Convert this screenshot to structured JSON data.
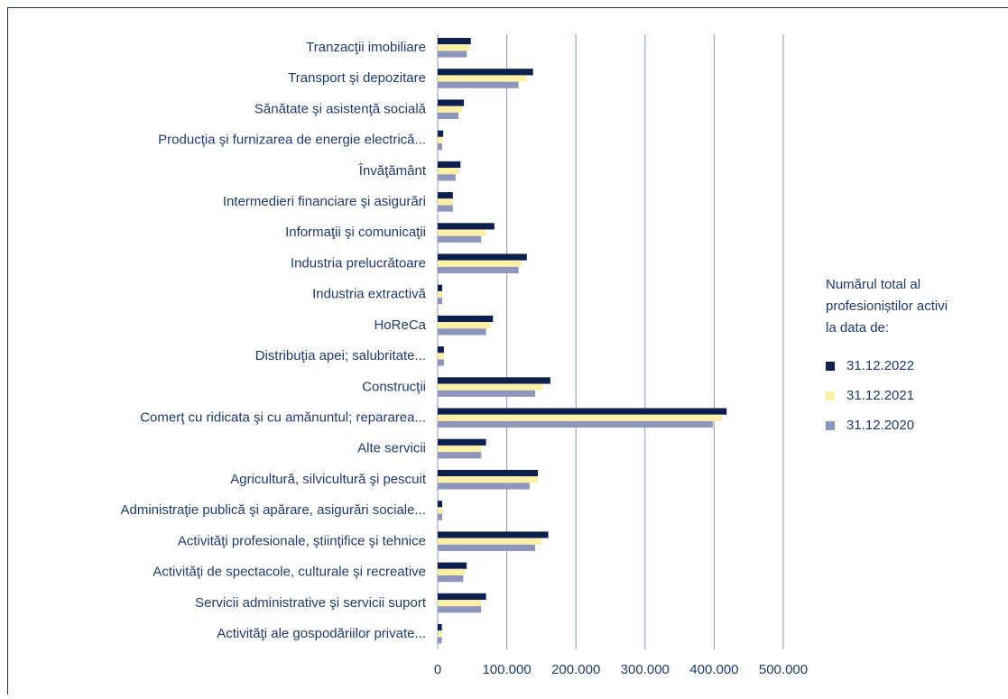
{
  "chart_data": {
    "type": "barh",
    "categories": [
      "Tranzacţii imobiliare",
      "Transport şi depozitare",
      "Sănătate şi asistenţă socială",
      "Producţia şi furnizarea de energie electrică...",
      "Învăţământ",
      "Intermedieri financiare şi asigurări",
      "Informaţii şi comunicaţii",
      "Industria prelucrătoare",
      "Industria extractivă",
      "HoReCa",
      "Distribuţia apei; salubritate...",
      "Construcţii",
      "Comerţ cu ridicata şi cu amănuntul; repararea...",
      "Alte servicii",
      "Agricultură, silvicultură şi pescuit",
      "Administraţie publică şi apărare, asigurări sociale...",
      "Activităţi profesionale, ştiinţifice şi tehnice",
      "Activităţi de spectacole, culturale şi recreative",
      "Servicii administrative şi servicii suport",
      "Activităţi ale gospodăriilor private..."
    ],
    "series": [
      {
        "name": "31.12.2022",
        "color": "#0d1f4d",
        "values": [
          48000,
          138000,
          38000,
          8000,
          33000,
          22000,
          82000,
          129000,
          6500,
          80000,
          9000,
          163000,
          418000,
          70000,
          145000,
          6500,
          160000,
          42000,
          70000,
          6000
        ]
      },
      {
        "name": "31.12.2021",
        "color": "#fcefa6",
        "values": [
          46000,
          129000,
          35000,
          7000,
          30000,
          22000,
          70000,
          121000,
          6500,
          76000,
          9000,
          152000,
          411000,
          63000,
          145000,
          6500,
          151000,
          39000,
          63000,
          6000
        ]
      },
      {
        "name": "31.12.2020",
        "color": "#8f96bb",
        "values": [
          42000,
          117000,
          30000,
          6500,
          26000,
          22000,
          63000,
          117000,
          6500,
          70000,
          9000,
          141000,
          398000,
          63000,
          133000,
          6500,
          141000,
          37000,
          63000,
          6000
        ]
      }
    ],
    "legend_title": [
      "Numărul total al",
      "profesioniștilor activi",
      "la data de:"
    ],
    "xlim": [
      0,
      500000
    ],
    "xticks": [
      0,
      {
        "value": 100000,
        "label": "100.000"
      },
      {
        "value": 200000,
        "label": "200.000"
      },
      {
        "value": 300000,
        "label": "300.000"
      },
      {
        "value": 400000,
        "label": "400.000"
      },
      {
        "value": 500000,
        "label": "500.000"
      }
    ],
    "grid": true,
    "legend": "right"
  }
}
